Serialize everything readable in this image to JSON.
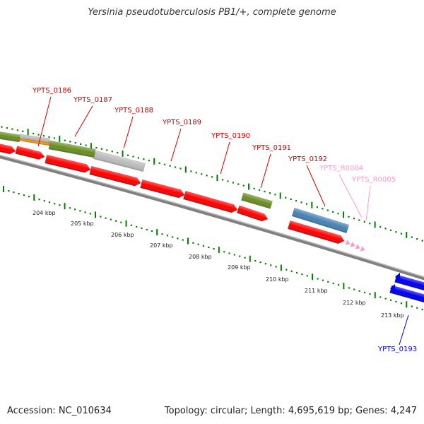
{
  "title": "Yersinia pseudotuberculosis PB1/+, complete genome",
  "footer": {
    "accession": "Accession: NC_010634",
    "topology": "Topology: circular; Length: 4,695,619 bp; Genes: 4,247"
  },
  "colors": {
    "cds_red": "#ff0000",
    "cds_blue": "#0000ee",
    "olive": "#6b8e23",
    "gray_feature": "#bbbbbb",
    "orange": "#ff9900",
    "steel_blue": "#4682b4",
    "rna_pink": "#ff99cc",
    "backbone": "#808080",
    "tick_green": "#008000",
    "label_red": "#cc0000",
    "label_pink": "#ff99cc",
    "label_blue": "#0000cc"
  },
  "genes": [
    {
      "name": "YPTS_0186",
      "color": "label_red"
    },
    {
      "name": "YPTS_0187",
      "color": "label_red"
    },
    {
      "name": "YPTS_0188",
      "color": "label_red"
    },
    {
      "name": "YPTS_0189",
      "color": "label_red"
    },
    {
      "name": "YPTS_0190",
      "color": "label_red"
    },
    {
      "name": "YPTS_0191",
      "color": "label_red"
    },
    {
      "name": "YPTS_0192",
      "color": "label_red"
    },
    {
      "name": "YPTS_R0004",
      "color": "label_pink"
    },
    {
      "name": "YPTS_R0005",
      "color": "label_pink"
    },
    {
      "name": "YPTS_0193",
      "color": "label_blue"
    }
  ],
  "scale_labels": [
    "204 kbp",
    "205 kbp",
    "206 kbp",
    "207 kbp",
    "208 kbp",
    "209 kbp",
    "210 kbp",
    "211 kbp",
    "212 kbp",
    "213 kbp"
  ]
}
